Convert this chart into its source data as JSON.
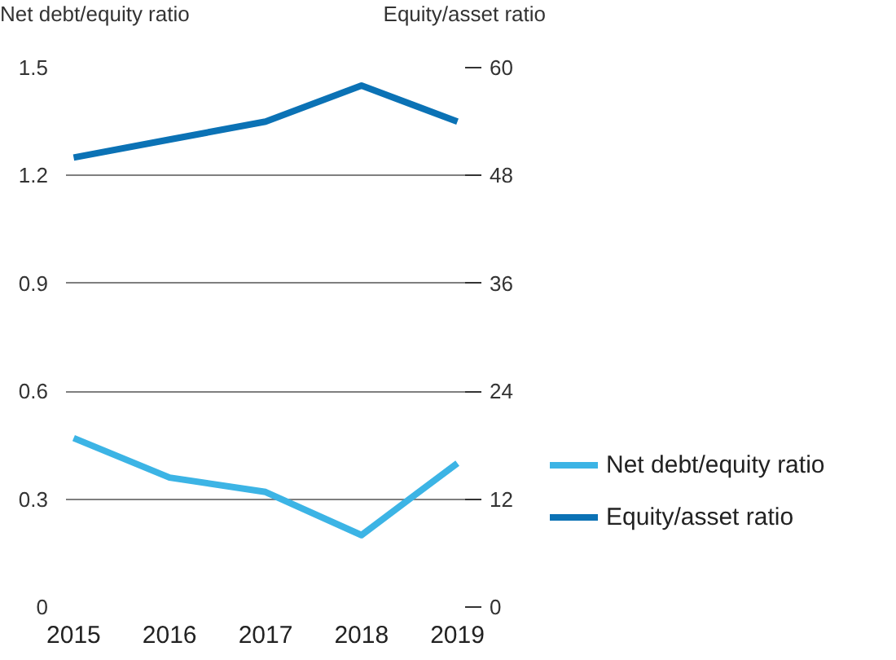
{
  "chart_data": {
    "type": "line",
    "xlabel": null,
    "ylabel": "Net debt/equity ratio",
    "y2label": "Equity/asset ratio",
    "categories": [
      "2015",
      "2016",
      "2017",
      "2018",
      "2019"
    ],
    "series": [
      {
        "name": "Net debt/equity ratio",
        "color": "#3cb4e5",
        "values": [
          0.47,
          0.36,
          0.32,
          0.2,
          0.4
        ]
      },
      {
        "name": "Equity/asset ratio",
        "color": "#0b72b5",
        "values": [
          50,
          52,
          54,
          58,
          54
        ],
        "axis": "y2"
      }
    ],
    "ylim": [
      0,
      1.5
    ],
    "yticks": [
      0,
      0.3,
      0.6,
      0.9,
      1.2,
      1.5
    ],
    "y2lim": [
      0,
      60
    ],
    "y2ticks": [
      0,
      12,
      24,
      36,
      48,
      60
    ],
    "grid": "y",
    "legend": "right",
    "marker": "none",
    "line_style": "solid"
  }
}
